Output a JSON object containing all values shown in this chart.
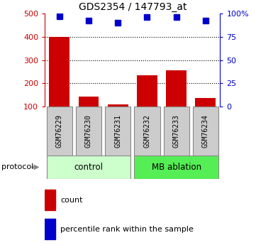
{
  "title": "GDS2354 / 147793_at",
  "samples": [
    "GSM76229",
    "GSM76230",
    "GSM76231",
    "GSM76232",
    "GSM76233",
    "GSM76234"
  ],
  "counts": [
    400,
    143,
    110,
    234,
    255,
    137
  ],
  "percentile_ranks": [
    97,
    92,
    90,
    96,
    96,
    92
  ],
  "ylim_left": [
    100,
    500
  ],
  "ylim_right": [
    0,
    100
  ],
  "yticks_left": [
    100,
    200,
    300,
    400,
    500
  ],
  "yticks_right": [
    0,
    25,
    50,
    75,
    100
  ],
  "ytick_labels_right": [
    "0",
    "25",
    "50",
    "75",
    "100%"
  ],
  "bar_color": "#cc0000",
  "dot_color": "#0000cc",
  "groups": [
    {
      "label": "control",
      "indices": [
        0,
        1,
        2
      ],
      "color": "#ccffcc"
    },
    {
      "label": "MB ablation",
      "indices": [
        3,
        4,
        5
      ],
      "color": "#55ee55"
    }
  ],
  "protocol_label": "protocol",
  "legend_count_label": "count",
  "legend_percentile_label": "percentile rank within the sample",
  "grid_dotted_at": [
    200,
    300,
    400
  ],
  "bg_color": "#ffffff",
  "sample_box_color": "#cccccc",
  "left_axis_color": "#cc0000",
  "right_axis_color": "#0000cc",
  "bar_width": 0.7
}
